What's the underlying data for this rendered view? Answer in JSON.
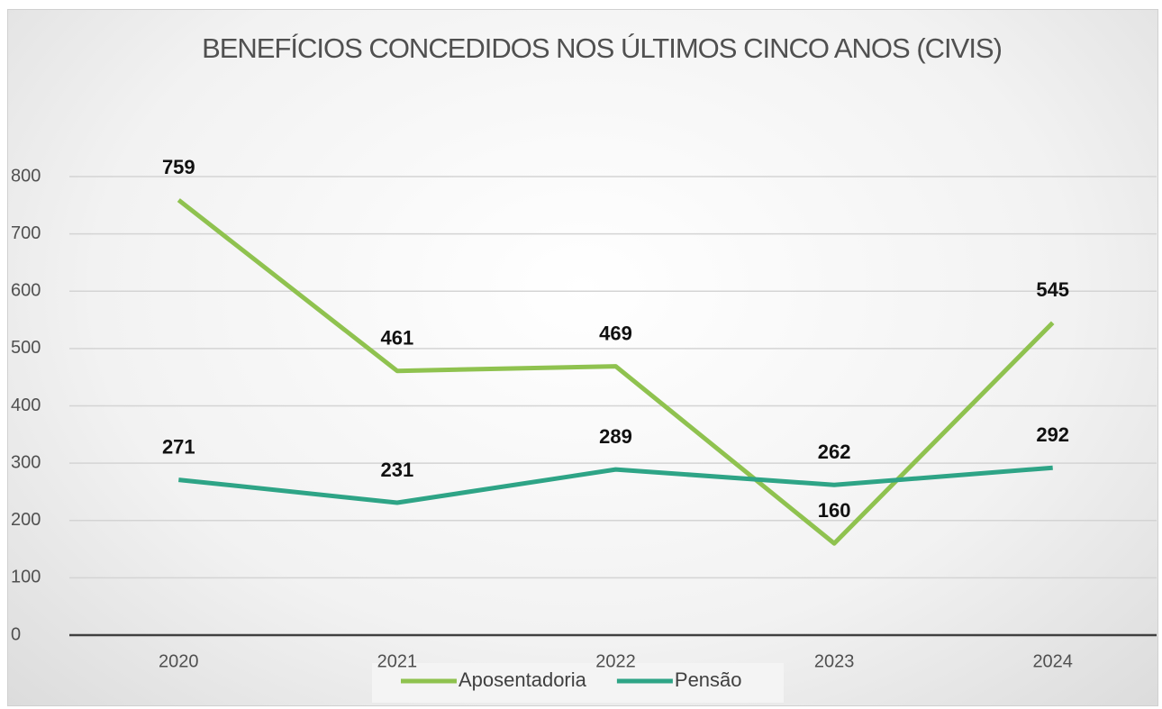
{
  "chart_data": {
    "type": "line",
    "title": "BENEFÍCIOS CONCEDIDOS NOS ÚLTIMOS CINCO ANOS (CIVIS)",
    "categories": [
      "2020",
      "2021",
      "2022",
      "2023",
      "2024"
    ],
    "series": [
      {
        "name": "Aposentadoria",
        "color": "#8fc24f",
        "values": [
          759,
          461,
          469,
          160,
          545
        ]
      },
      {
        "name": "Pensão",
        "color": "#2ea486",
        "values": [
          271,
          231,
          289,
          262,
          292
        ]
      }
    ],
    "ylim": [
      0,
      800
    ],
    "yticks": [
      0,
      100,
      200,
      300,
      400,
      500,
      600,
      700,
      800
    ],
    "grid": true,
    "legend": "bottom"
  }
}
